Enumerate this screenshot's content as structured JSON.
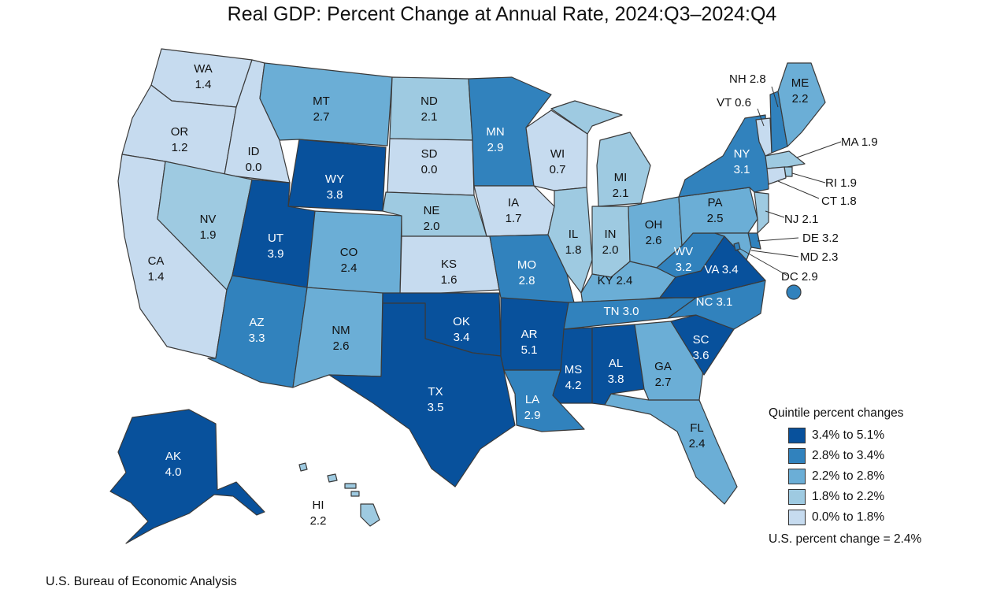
{
  "title": "Real GDP: Percent Change at Annual Rate, 2024:Q3–2024:Q4",
  "colors": {
    "q5": "#08519c",
    "q4": "#3182bd",
    "q3": "#6baed6",
    "q2": "#9ecae1",
    "q1": "#c6dbef",
    "border": "#3a3a3a"
  },
  "legend": {
    "title": "Quintile percent changes",
    "items": [
      {
        "label": "3.4% to 5.1%",
        "color": "#08519c"
      },
      {
        "label": "2.8% to 3.4%",
        "color": "#3182bd"
      },
      {
        "label": "2.2% to 2.8%",
        "color": "#6baed6"
      },
      {
        "label": "1.8% to 2.2%",
        "color": "#9ecae1"
      },
      {
        "label": "0.0% to 1.8%",
        "color": "#c6dbef"
      }
    ],
    "us_note": "U.S. percent change = 2.4%"
  },
  "states": {
    "WA": {
      "value": "1.4"
    },
    "OR": {
      "value": "1.2"
    },
    "CA": {
      "value": "1.4"
    },
    "ID": {
      "value": "0.0"
    },
    "NV": {
      "value": "1.9"
    },
    "MT": {
      "value": "2.7"
    },
    "WY": {
      "value": "3.8"
    },
    "UT": {
      "value": "3.9"
    },
    "AZ": {
      "value": "3.3"
    },
    "CO": {
      "value": "2.4"
    },
    "NM": {
      "value": "2.6"
    },
    "ND": {
      "value": "2.1"
    },
    "SD": {
      "value": "0.0"
    },
    "NE": {
      "value": "2.0"
    },
    "KS": {
      "value": "1.6"
    },
    "OK": {
      "value": "3.4"
    },
    "TX": {
      "value": "3.5"
    },
    "MN": {
      "value": "2.9"
    },
    "IA": {
      "value": "1.7"
    },
    "MO": {
      "value": "2.8"
    },
    "AR": {
      "value": "5.1"
    },
    "LA": {
      "value": "2.9"
    },
    "WI": {
      "value": "0.7"
    },
    "IL": {
      "value": "1.8"
    },
    "MI": {
      "value": "2.1"
    },
    "IN": {
      "value": "2.0"
    },
    "OH": {
      "value": "2.6"
    },
    "KY": {
      "value": "2.4"
    },
    "TN": {
      "value": "3.0"
    },
    "MS": {
      "value": "4.2"
    },
    "AL": {
      "value": "3.8"
    },
    "GA": {
      "value": "2.7"
    },
    "FL": {
      "value": "2.4"
    },
    "SC": {
      "value": "3.6"
    },
    "NC": {
      "value": "3.1"
    },
    "VA": {
      "value": "3.4"
    },
    "WV": {
      "value": "3.2"
    },
    "PA": {
      "value": "2.5"
    },
    "NY": {
      "value": "3.1"
    },
    "ME": {
      "value": "2.2"
    },
    "NH": {
      "value": "2.8"
    },
    "VT": {
      "value": "0.6"
    },
    "MA": {
      "value": "1.9"
    },
    "RI": {
      "value": "1.9"
    },
    "CT": {
      "value": "1.8"
    },
    "NJ": {
      "value": "2.1"
    },
    "DE": {
      "value": "3.2"
    },
    "MD": {
      "value": "2.3"
    },
    "DC": {
      "value": "2.9"
    },
    "AK": {
      "value": "4.0"
    },
    "HI": {
      "value": "2.2"
    }
  },
  "source": "U.S. Bureau of Economic Analysis"
}
